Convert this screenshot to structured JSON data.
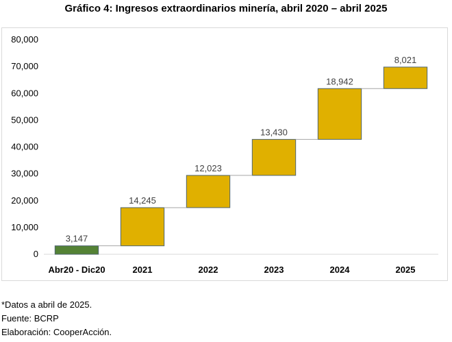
{
  "chart_data": {
    "type": "bar",
    "subtype": "waterfall",
    "title": "Gráfico 4: Ingresos extraordinarios minería, abril 2020 – abril 2025",
    "xlabel": "",
    "ylabel": "",
    "categories": [
      "Abr20 - Dic20",
      "2021",
      "2022",
      "2023",
      "2024",
      "2025"
    ],
    "values": [
      3147,
      14245,
      12023,
      13430,
      18942,
      8021
    ],
    "value_labels": [
      "3,147",
      "14,245",
      "12,023",
      "13,430",
      "18,942",
      "8,021"
    ],
    "ylim": [
      0,
      80000
    ],
    "yticks": [
      0,
      10000,
      20000,
      30000,
      40000,
      50000,
      60000,
      70000,
      80000
    ],
    "ytick_labels": [
      "0",
      "10,000",
      "20,000",
      "30,000",
      "40,000",
      "50,000",
      "60,000",
      "70,000",
      "80,000"
    ],
    "grid": false,
    "legend": "none",
    "colors": {
      "first_bar": "#548235",
      "increase_bar": "#e0b000",
      "bar_border": "#4d6470",
      "connector": "#a6a6a6",
      "axis": "#d9d9d9"
    }
  },
  "notes": {
    "data_note": "*Datos a abril de 2025.",
    "source": "Fuente: BCRP",
    "elaboration": "Elaboración: CooperAcción."
  }
}
